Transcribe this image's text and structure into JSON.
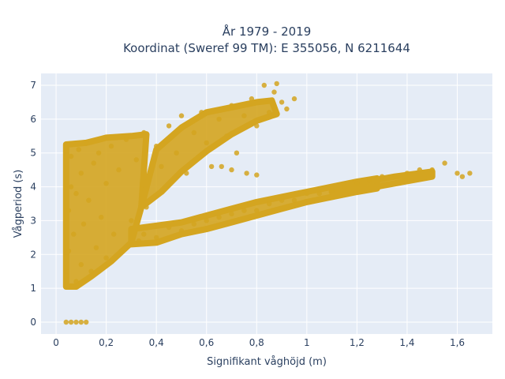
{
  "chart_data": {
    "type": "scatter",
    "title_line1": "År 1979 - 2019",
    "title_line2": "Koordinat (Sweref 99 TM): E 355056, N 6211644",
    "xlabel": "Signifikant våghöjd (m)",
    "ylabel": "Vågperiod (s)",
    "xlim": [
      -0.06,
      1.74
    ],
    "ylim": [
      -0.35,
      7.35
    ],
    "x_ticks": [
      0,
      0.2,
      0.4,
      0.6,
      0.8,
      1,
      1.2,
      1.4,
      1.6
    ],
    "x_tick_labels": [
      "0",
      "0,2",
      "0,4",
      "0,6",
      "0,8",
      "1",
      "1,2",
      "1,4",
      "1,6"
    ],
    "y_ticks": [
      0,
      1,
      2,
      3,
      4,
      5,
      6,
      7
    ],
    "y_tick_labels": [
      "0",
      "1",
      "2",
      "3",
      "4",
      "5",
      "6",
      "7"
    ],
    "grid": true,
    "marker_color": "#d4a520",
    "plot_background": "#e5ecf6",
    "series": [
      {
        "points": [
          [
            0.04,
            0
          ],
          [
            0.06,
            0
          ],
          [
            0.08,
            0
          ],
          [
            0.1,
            0
          ],
          [
            0.12,
            0
          ],
          [
            0.04,
            1.5
          ],
          [
            0.05,
            2.1
          ],
          [
            0.05,
            3.3
          ],
          [
            0.06,
            4.0
          ],
          [
            0.06,
            4.9
          ],
          [
            0.07,
            2.6
          ],
          [
            0.08,
            1.2
          ],
          [
            0.08,
            3.8
          ],
          [
            0.09,
            5.1
          ],
          [
            0.1,
            4.4
          ],
          [
            0.1,
            1.7
          ],
          [
            0.11,
            2.9
          ],
          [
            0.12,
            5.3
          ],
          [
            0.13,
            3.6
          ],
          [
            0.14,
            1.5
          ],
          [
            0.15,
            4.7
          ],
          [
            0.16,
            2.2
          ],
          [
            0.17,
            5.0
          ],
          [
            0.18,
            3.1
          ],
          [
            0.2,
            1.9
          ],
          [
            0.2,
            4.1
          ],
          [
            0.22,
            5.2
          ],
          [
            0.23,
            2.6
          ],
          [
            0.25,
            4.5
          ],
          [
            0.26,
            2.1
          ],
          [
            0.28,
            5.4
          ],
          [
            0.3,
            3.0
          ],
          [
            0.32,
            4.8
          ],
          [
            0.33,
            2.4
          ],
          [
            0.35,
            5.6
          ],
          [
            0.36,
            3.4
          ],
          [
            0.4,
            5.2
          ],
          [
            0.42,
            4.6
          ],
          [
            0.45,
            5.8
          ],
          [
            0.48,
            5.0
          ],
          [
            0.5,
            6.1
          ],
          [
            0.52,
            4.4
          ],
          [
            0.55,
            5.6
          ],
          [
            0.58,
            6.2
          ],
          [
            0.6,
            5.3
          ],
          [
            0.62,
            4.6
          ],
          [
            0.65,
            6.0
          ],
          [
            0.68,
            5.5
          ],
          [
            0.7,
            6.4
          ],
          [
            0.72,
            5.0
          ],
          [
            0.75,
            6.1
          ],
          [
            0.78,
            6.6
          ],
          [
            0.8,
            5.8
          ],
          [
            0.83,
            7.0
          ],
          [
            0.85,
            6.2
          ],
          [
            0.87,
            6.8
          ],
          [
            0.88,
            7.05
          ],
          [
            0.9,
            6.5
          ],
          [
            0.92,
            6.3
          ],
          [
            0.95,
            6.6
          ],
          [
            0.3,
            2.3
          ],
          [
            0.35,
            2.6
          ],
          [
            0.4,
            2.5
          ],
          [
            0.45,
            2.8
          ],
          [
            0.5,
            2.7
          ],
          [
            0.55,
            2.9
          ],
          [
            0.6,
            3.0
          ],
          [
            0.65,
            3.1
          ],
          [
            0.7,
            3.2
          ],
          [
            0.75,
            3.3
          ],
          [
            0.8,
            3.3
          ],
          [
            0.85,
            3.5
          ],
          [
            0.9,
            3.6
          ],
          [
            0.95,
            3.6
          ],
          [
            1.0,
            3.8
          ],
          [
            1.05,
            3.8
          ],
          [
            1.1,
            3.9
          ],
          [
            1.15,
            4.0
          ],
          [
            1.2,
            4.1
          ],
          [
            1.25,
            4.2
          ],
          [
            1.3,
            4.3
          ],
          [
            1.35,
            4.3
          ],
          [
            1.4,
            4.4
          ],
          [
            1.45,
            4.5
          ],
          [
            1.5,
            4.5
          ],
          [
            1.55,
            4.7
          ],
          [
            1.6,
            4.4
          ],
          [
            1.62,
            4.3
          ],
          [
            1.65,
            4.4
          ],
          [
            0.76,
            4.4
          ],
          [
            0.8,
            4.35
          ],
          [
            0.7,
            4.5
          ],
          [
            0.66,
            4.6
          ]
        ]
      }
    ]
  }
}
